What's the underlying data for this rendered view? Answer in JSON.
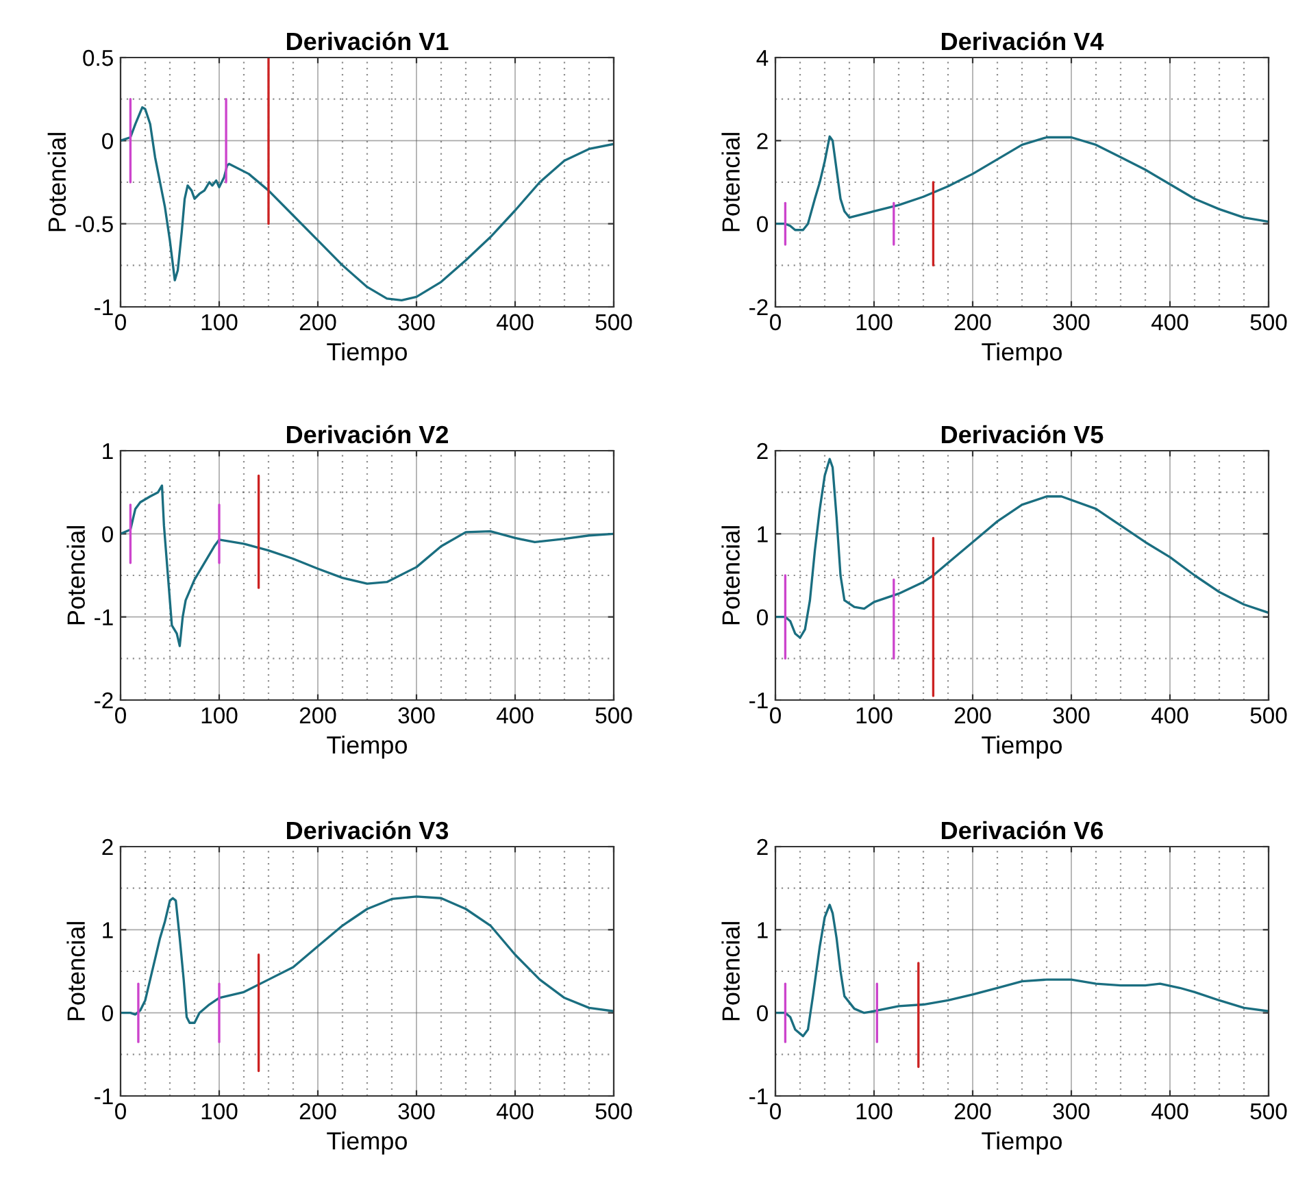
{
  "chart_data": [
    {
      "type": "line",
      "title": "Derivación V1",
      "xlabel": "Tiempo",
      "ylabel": "Potencial",
      "xlim": [
        0,
        500
      ],
      "xticks": [
        0,
        100,
        200,
        300,
        400,
        500
      ],
      "ylim": [
        -1,
        0.5
      ],
      "yticks": [
        -1,
        -0.5,
        0,
        0.5
      ],
      "grid": true,
      "series": [
        {
          "color": "#1a6e80",
          "x": [
            0,
            10,
            15,
            22,
            25,
            30,
            35,
            40,
            45,
            50,
            55,
            58,
            62,
            65,
            68,
            72,
            75,
            80,
            85,
            90,
            93,
            97,
            100,
            105,
            108,
            110,
            130,
            150,
            175,
            200,
            225,
            250,
            270,
            285,
            300,
            325,
            350,
            375,
            400,
            425,
            450,
            475,
            500
          ],
          "values": [
            0,
            0.02,
            0.1,
            0.2,
            0.19,
            0.1,
            -0.1,
            -0.25,
            -0.4,
            -0.6,
            -0.84,
            -0.78,
            -0.55,
            -0.35,
            -0.27,
            -0.3,
            -0.35,
            -0.32,
            -0.3,
            -0.25,
            -0.27,
            -0.24,
            -0.28,
            -0.22,
            -0.15,
            -0.14,
            -0.2,
            -0.3,
            -0.45,
            -0.6,
            -0.75,
            -0.88,
            -0.95,
            -0.96,
            -0.94,
            -0.85,
            -0.72,
            -0.58,
            -0.42,
            -0.25,
            -0.12,
            -0.05,
            -0.02
          ]
        },
        {
          "color": "#cc44cc",
          "x": [
            10,
            10
          ],
          "values": [
            -0.25,
            0.25
          ]
        },
        {
          "color": "#cc44cc",
          "x": [
            107,
            107
          ],
          "values": [
            -0.25,
            0.25
          ]
        },
        {
          "color": "#cc2222",
          "x": [
            150,
            150
          ],
          "values": [
            -0.5,
            0.5
          ]
        }
      ]
    },
    {
      "type": "line",
      "title": "Derivación V4",
      "xlabel": "Tiempo",
      "ylabel": "Potencial",
      "xlim": [
        0,
        500
      ],
      "xticks": [
        0,
        100,
        200,
        300,
        400,
        500
      ],
      "ylim": [
        -2,
        4
      ],
      "yticks": [
        -2,
        0,
        2,
        4
      ],
      "grid": true,
      "series": [
        {
          "color": "#1a6e80",
          "x": [
            0,
            10,
            15,
            20,
            28,
            33,
            40,
            45,
            50,
            55,
            58,
            62,
            66,
            70,
            75,
            100,
            125,
            150,
            175,
            200,
            225,
            250,
            275,
            300,
            325,
            350,
            375,
            400,
            425,
            450,
            475,
            500
          ],
          "values": [
            0,
            0,
            -0.05,
            -0.15,
            -0.15,
            0,
            0.6,
            1,
            1.5,
            2.1,
            2.0,
            1.3,
            0.6,
            0.3,
            0.15,
            0.3,
            0.45,
            0.65,
            0.9,
            1.2,
            1.55,
            1.9,
            2.08,
            2.08,
            1.9,
            1.6,
            1.3,
            0.95,
            0.6,
            0.35,
            0.15,
            0.05
          ]
        },
        {
          "color": "#cc44cc",
          "x": [
            10,
            10
          ],
          "values": [
            -0.5,
            0.5
          ]
        },
        {
          "color": "#cc44cc",
          "x": [
            120,
            120
          ],
          "values": [
            -0.5,
            0.5
          ]
        },
        {
          "color": "#cc2222",
          "x": [
            160,
            160
          ],
          "values": [
            -1,
            1
          ]
        }
      ]
    },
    {
      "type": "line",
      "title": "Derivación V2",
      "xlabel": "Tiempo",
      "ylabel": "Potencial",
      "xlim": [
        0,
        500
      ],
      "xticks": [
        0,
        100,
        200,
        300,
        400,
        500
      ],
      "ylim": [
        -2,
        1
      ],
      "yticks": [
        -2,
        -1,
        0,
        1
      ],
      "grid": true,
      "series": [
        {
          "color": "#1a6e80",
          "x": [
            0,
            10,
            15,
            20,
            30,
            38,
            42,
            44,
            48,
            52,
            57,
            60,
            63,
            66,
            75,
            85,
            95,
            100,
            125,
            150,
            175,
            200,
            225,
            250,
            270,
            300,
            325,
            350,
            375,
            400,
            420,
            450,
            475,
            500
          ],
          "values": [
            0,
            0.05,
            0.3,
            0.38,
            0.45,
            0.5,
            0.58,
            0.1,
            -0.5,
            -1.1,
            -1.2,
            -1.35,
            -1.0,
            -0.8,
            -0.55,
            -0.35,
            -0.15,
            -0.07,
            -0.12,
            -0.2,
            -0.3,
            -0.42,
            -0.53,
            -0.6,
            -0.58,
            -0.4,
            -0.15,
            0.02,
            0.03,
            -0.05,
            -0.1,
            -0.06,
            -0.02,
            0
          ]
        },
        {
          "color": "#cc44cc",
          "x": [
            10,
            10
          ],
          "values": [
            -0.35,
            0.35
          ]
        },
        {
          "color": "#cc44cc",
          "x": [
            100,
            100
          ],
          "values": [
            -0.35,
            0.35
          ]
        },
        {
          "color": "#cc2222",
          "x": [
            140,
            140
          ],
          "values": [
            -0.65,
            0.7
          ]
        }
      ]
    },
    {
      "type": "line",
      "title": "Derivación V5",
      "xlabel": "Tiempo",
      "ylabel": "Potencial",
      "xlim": [
        0,
        500
      ],
      "xticks": [
        0,
        100,
        200,
        300,
        400,
        500
      ],
      "ylim": [
        -1,
        2
      ],
      "yticks": [
        -1,
        0,
        1,
        2
      ],
      "grid": true,
      "series": [
        {
          "color": "#1a6e80",
          "x": [
            0,
            10,
            15,
            20,
            25,
            30,
            35,
            40,
            45,
            50,
            55,
            58,
            62,
            66,
            70,
            80,
            90,
            100,
            125,
            150,
            160,
            175,
            200,
            225,
            250,
            275,
            290,
            325,
            350,
            375,
            400,
            425,
            450,
            475,
            500
          ],
          "values": [
            0,
            0,
            -0.05,
            -0.2,
            -0.25,
            -0.15,
            0.2,
            0.8,
            1.3,
            1.7,
            1.9,
            1.8,
            1.2,
            0.5,
            0.2,
            0.12,
            0.1,
            0.18,
            0.28,
            0.42,
            0.5,
            0.65,
            0.9,
            1.15,
            1.35,
            1.45,
            1.45,
            1.3,
            1.1,
            0.9,
            0.72,
            0.5,
            0.3,
            0.15,
            0.05
          ]
        },
        {
          "color": "#cc44cc",
          "x": [
            10,
            10
          ],
          "values": [
            -0.5,
            0.5
          ]
        },
        {
          "color": "#cc44cc",
          "x": [
            120,
            120
          ],
          "values": [
            -0.5,
            0.45
          ]
        },
        {
          "color": "#cc2222",
          "x": [
            160,
            160
          ],
          "values": [
            -0.95,
            0.95
          ]
        }
      ]
    },
    {
      "type": "line",
      "title": "Derivación V3",
      "xlabel": "Tiempo",
      "ylabel": "Potencial",
      "xlim": [
        0,
        500
      ],
      "xticks": [
        0,
        100,
        200,
        300,
        400,
        500
      ],
      "ylim": [
        -1,
        2
      ],
      "yticks": [
        -1,
        0,
        1,
        2
      ],
      "grid": true,
      "series": [
        {
          "color": "#1a6e80",
          "x": [
            0,
            10,
            15,
            20,
            25,
            30,
            35,
            40,
            45,
            50,
            53,
            56,
            60,
            64,
            67,
            70,
            75,
            80,
            90,
            100,
            125,
            150,
            175,
            200,
            225,
            250,
            275,
            300,
            325,
            350,
            375,
            400,
            425,
            450,
            475,
            500
          ],
          "values": [
            0,
            0,
            -0.02,
            0.03,
            0.15,
            0.4,
            0.65,
            0.9,
            1.1,
            1.35,
            1.38,
            1.35,
            0.9,
            0.4,
            -0.05,
            -0.12,
            -0.12,
            0,
            0.1,
            0.18,
            0.25,
            0.4,
            0.55,
            0.8,
            1.05,
            1.25,
            1.37,
            1.4,
            1.38,
            1.25,
            1.05,
            0.7,
            0.4,
            0.18,
            0.06,
            0.02
          ]
        },
        {
          "color": "#cc44cc",
          "x": [
            18,
            18
          ],
          "values": [
            -0.35,
            0.35
          ]
        },
        {
          "color": "#cc44cc",
          "x": [
            100,
            100
          ],
          "values": [
            -0.35,
            0.35
          ]
        },
        {
          "color": "#cc2222",
          "x": [
            140,
            140
          ],
          "values": [
            -0.7,
            0.7
          ]
        }
      ]
    },
    {
      "type": "line",
      "title": "Derivación V6",
      "xlabel": "Tiempo",
      "ylabel": "Potencial",
      "xlim": [
        0,
        500
      ],
      "xticks": [
        0,
        100,
        200,
        300,
        400,
        500
      ],
      "ylim": [
        -1,
        2
      ],
      "yticks": [
        -1,
        0,
        1,
        2
      ],
      "grid": true,
      "series": [
        {
          "color": "#1a6e80",
          "x": [
            0,
            10,
            15,
            20,
            28,
            33,
            38,
            45,
            50,
            55,
            58,
            62,
            66,
            70,
            80,
            90,
            100,
            125,
            150,
            175,
            200,
            225,
            250,
            275,
            300,
            325,
            350,
            375,
            390,
            410,
            425,
            450,
            475,
            500
          ],
          "values": [
            0,
            0,
            -0.05,
            -0.2,
            -0.28,
            -0.2,
            0.2,
            0.8,
            1.15,
            1.3,
            1.2,
            0.9,
            0.5,
            0.2,
            0.05,
            0,
            0.02,
            0.08,
            0.1,
            0.15,
            0.22,
            0.3,
            0.38,
            0.4,
            0.4,
            0.35,
            0.33,
            0.33,
            0.35,
            0.3,
            0.25,
            0.15,
            0.06,
            0.02
          ]
        },
        {
          "color": "#cc44cc",
          "x": [
            10,
            10
          ],
          "values": [
            -0.35,
            0.35
          ]
        },
        {
          "color": "#cc44cc",
          "x": [
            103,
            103
          ],
          "values": [
            -0.35,
            0.35
          ]
        },
        {
          "color": "#cc2222",
          "x": [
            145,
            145
          ],
          "values": [
            -0.65,
            0.6
          ]
        }
      ]
    }
  ]
}
